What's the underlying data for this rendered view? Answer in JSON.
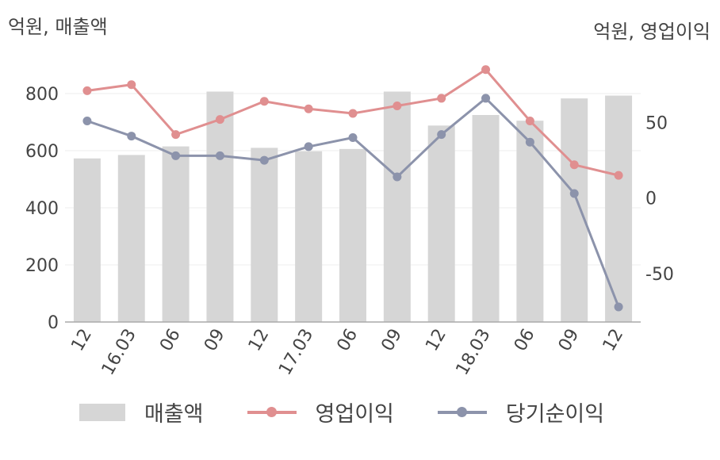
{
  "units": {
    "left": "억원, 매출액",
    "right": "억원, 영업이익"
  },
  "legend": {
    "bar": "매출액",
    "line1": "영업이익",
    "line2": "당기순이익"
  },
  "colors": {
    "bar": "#d6d6d6",
    "op": "#e08f90",
    "net": "#8c93ab",
    "axis": "#aaaaaa",
    "grid": "#eeeeee"
  },
  "chart_data": {
    "type": "bar",
    "categories": [
      "12",
      "16.03",
      "06",
      "09",
      "12",
      "17.03",
      "06",
      "09",
      "12",
      "18.03",
      "06",
      "09",
      "12"
    ],
    "series": [
      {
        "name": "매출액",
        "axis": "left",
        "type": "bar",
        "values": [
          573,
          585,
          615,
          807,
          610,
          598,
          606,
          807,
          688,
          725,
          705,
          783,
          793
        ]
      },
      {
        "name": "영업이익",
        "axis": "right",
        "type": "line",
        "values": [
          71,
          75,
          42,
          52,
          64,
          59,
          56,
          61,
          66,
          85,
          51,
          22,
          15
        ]
      },
      {
        "name": "당기순이익",
        "axis": "right",
        "type": "line",
        "values": [
          51,
          41,
          28,
          28,
          25,
          34,
          40,
          14,
          42,
          66,
          37,
          3,
          -72
        ]
      }
    ],
    "yaxis_left": {
      "ticks": [
        0,
        200,
        400,
        600,
        800
      ],
      "ylim": [
        0,
        900
      ]
    },
    "yaxis_right": {
      "ticks": [
        -50,
        0,
        50
      ],
      "ylim": [
        -82,
        88
      ]
    },
    "legend_position": "bottom"
  }
}
